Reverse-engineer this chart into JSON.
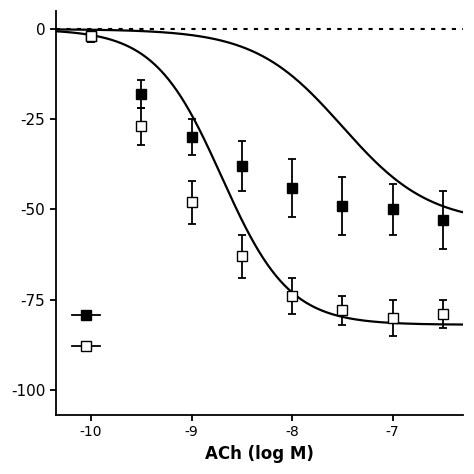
{
  "xlabel": "ACh (log M)",
  "xlim": [
    -10.35,
    -6.3
  ],
  "ylim": [
    -107,
    5
  ],
  "yticks": [
    0,
    -25,
    -50,
    -75,
    -100
  ],
  "ytick_labels": [
    "0",
    "-25",
    "-50",
    "-75",
    "-100"
  ],
  "xticks": [
    -10,
    -9,
    -8,
    -7
  ],
  "xtick_labels": [
    "-10",
    "-9",
    "-8",
    "-7"
  ],
  "filled_x": [
    -10.0,
    -9.5,
    -9.0,
    -8.5,
    -8.0,
    -7.5,
    -7.0,
    -6.5
  ],
  "filled_y": [
    -2,
    -18,
    -30,
    -38,
    -44,
    -49,
    -50,
    -53
  ],
  "filled_yerr": [
    1.5,
    4,
    5,
    7,
    8,
    8,
    7,
    8
  ],
  "open_x": [
    -10.0,
    -9.5,
    -9.0,
    -8.5,
    -8.0,
    -7.5,
    -7.0,
    -6.5
  ],
  "open_y": [
    -2,
    -27,
    -48,
    -63,
    -74,
    -78,
    -80,
    -79
  ],
  "open_yerr": [
    1.5,
    5,
    6,
    6,
    5,
    4,
    5,
    4
  ],
  "curve1_EC50": -7.5,
  "curve1_Emax": -54,
  "curve1_n": 1.0,
  "curve2_EC50": -8.7,
  "curve2_Emax": -82,
  "curve2_n": 1.3,
  "line_color": "#000000",
  "background_color": "#ffffff"
}
